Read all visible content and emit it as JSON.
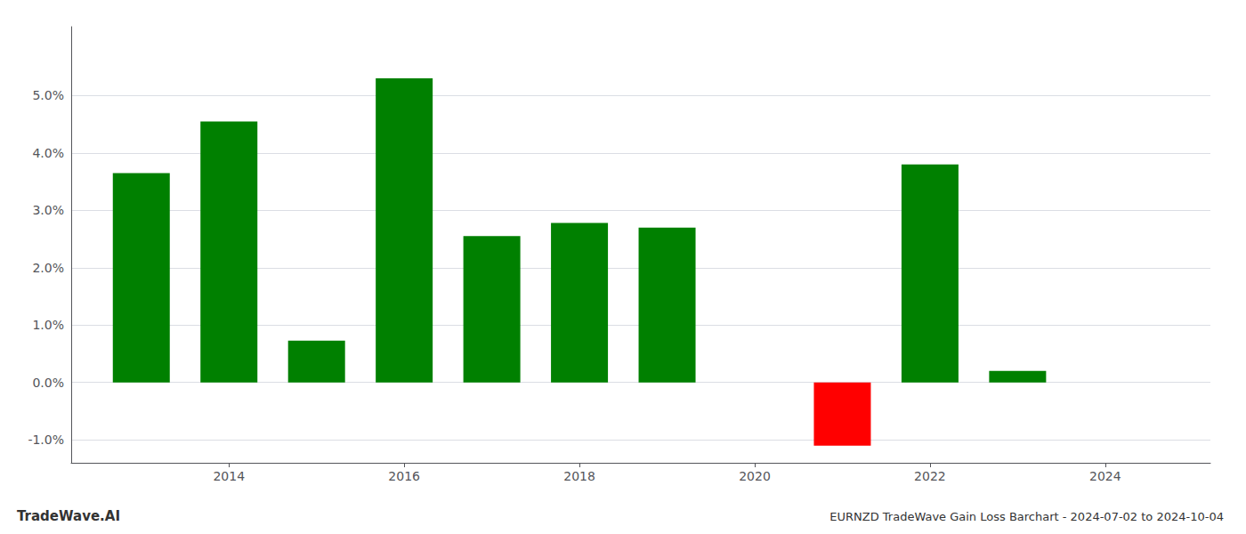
{
  "chart_data": {
    "type": "bar",
    "title": "EURNZD TradeWave Gain Loss Barchart - 2024-07-02 to 2024-10-04",
    "annotations": [
      "TradeWave.AI"
    ],
    "x": [
      2013,
      2014,
      2015,
      2016,
      2017,
      2018,
      2019,
      2021,
      2022,
      2023
    ],
    "values": [
      0.0365,
      0.0455,
      0.0073,
      0.053,
      0.0255,
      0.0278,
      0.027,
      -0.011,
      0.038,
      0.002
    ],
    "colors": [
      "#008000",
      "#008000",
      "#008000",
      "#008000",
      "#008000",
      "#008000",
      "#008000",
      "#ff0000",
      "#008000",
      "#008000"
    ],
    "xlim": [
      2012.2,
      2025.2
    ],
    "xticks": [
      2014,
      2016,
      2018,
      2020,
      2022,
      2024
    ],
    "ylim": [
      -0.014,
      0.062
    ],
    "yticks": [
      {
        "value": -0.01,
        "label": "-1.0%"
      },
      {
        "value": 0.0,
        "label": "0.0%"
      },
      {
        "value": 0.01,
        "label": "1.0%"
      },
      {
        "value": 0.02,
        "label": "2.0%"
      },
      {
        "value": 0.03,
        "label": "3.0%"
      },
      {
        "value": 0.04,
        "label": "4.0%"
      },
      {
        "value": 0.05,
        "label": "5.0%"
      }
    ],
    "grid": true
  }
}
